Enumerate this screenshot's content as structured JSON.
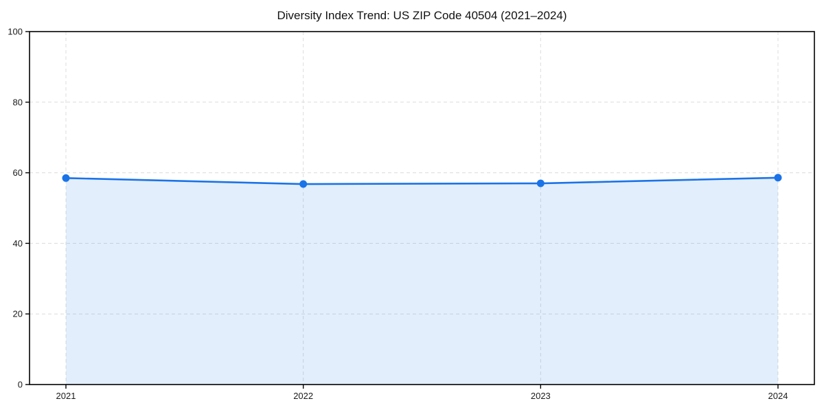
{
  "figure": {
    "title": "Diversity Index Trend: US ZIP Code 40504 (2021–2024)"
  },
  "chart_data": {
    "type": "area",
    "title": "Diversity Index Trend: US ZIP Code 40504 (2021–2024)",
    "x": [
      2021,
      2022,
      2023,
      2024
    ],
    "xticks": [
      "2021",
      "2022",
      "2023",
      "2024"
    ],
    "series": [
      {
        "name": "Diversity Index",
        "values": [
          58.5,
          56.8,
          57.0,
          58.6
        ]
      }
    ],
    "xlabel": "",
    "ylabel": "",
    "ylim": [
      0,
      100
    ],
    "yticks": [
      0,
      20,
      40,
      60,
      80,
      100
    ],
    "grid": true,
    "grid_style": "dashed",
    "legend_position": "none",
    "colors": {
      "line": "#1a73e8",
      "marker": "#1a73e8",
      "fill": "#1a73e8",
      "fill_opacity": "0.12",
      "grid": "#dcdcdc",
      "spine": "#000000",
      "tick_text": "#1a1a1a",
      "background": "#ffffff"
    }
  }
}
